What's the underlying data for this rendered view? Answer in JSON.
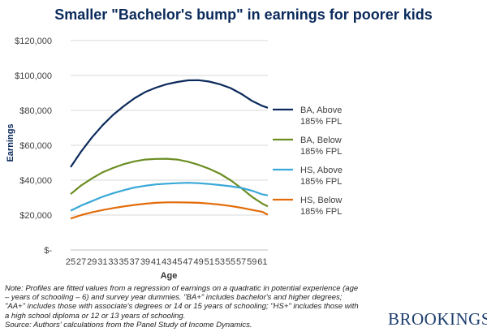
{
  "title": "Smaller \"Bachelor's bump\" in earnings for poorer kids",
  "chart_data": {
    "type": "line",
    "xlabel": "Age",
    "ylabel": "Earnings",
    "xlim": [
      25,
      62
    ],
    "ylim": [
      0,
      120000
    ],
    "x_ticks": [
      25,
      27,
      29,
      31,
      33,
      35,
      37,
      39,
      41,
      43,
      45,
      47,
      49,
      51,
      53,
      55,
      57,
      59,
      61
    ],
    "y_ticks": [
      {
        "value": 0,
        "label": "$-"
      },
      {
        "value": 20000,
        "label": "$20,000"
      },
      {
        "value": 40000,
        "label": "$40,000"
      },
      {
        "value": 60000,
        "label": "$60,000"
      },
      {
        "value": 80000,
        "label": "$80,000"
      },
      {
        "value": 100000,
        "label": "$100,000"
      },
      {
        "value": 120000,
        "label": "$120,000"
      }
    ],
    "grid": true,
    "legend_position": "right",
    "x": [
      25,
      27,
      29,
      31,
      33,
      35,
      37,
      39,
      41,
      43,
      45,
      47,
      49,
      51,
      53,
      55,
      57,
      59,
      61,
      62
    ],
    "series": [
      {
        "name": "BA, Above 185% FPL",
        "color": "#0b2a5b",
        "values": [
          47500,
          56500,
          64500,
          71500,
          77500,
          82500,
          87000,
          90500,
          93000,
          95000,
          96300,
          97200,
          97300,
          96500,
          95000,
          92800,
          89500,
          85500,
          82500,
          81500
        ]
      },
      {
        "name": "BA, Below 185% FPL",
        "color": "#6b8e23",
        "values": [
          32000,
          37000,
          41000,
          44500,
          47000,
          49200,
          50800,
          51800,
          52200,
          52300,
          51800,
          50600,
          48800,
          46500,
          43700,
          40000,
          35500,
          30500,
          26500,
          25000
        ]
      },
      {
        "name": "HS, Above 185% FPL",
        "color": "#3aa8d8",
        "values": [
          22500,
          25500,
          28000,
          30500,
          32500,
          34300,
          35800,
          36800,
          37600,
          38000,
          38300,
          38500,
          38300,
          37800,
          37200,
          36500,
          35600,
          34000,
          31800,
          31300
        ]
      },
      {
        "name": "HS, Below 185% FPL",
        "color": "#e36c0a",
        "values": [
          18000,
          20000,
          21600,
          22900,
          24000,
          25000,
          25800,
          26500,
          27000,
          27300,
          27300,
          27200,
          27000,
          26600,
          26000,
          25200,
          24200,
          23000,
          21800,
          20200
        ]
      }
    ]
  },
  "legend": [
    {
      "line1": "BA, Above",
      "line2": "185% FPL"
    },
    {
      "line1": "BA, Below",
      "line2": "185% FPL"
    },
    {
      "line1": "HS, Above",
      "line2": "185% FPL"
    },
    {
      "line1": "HS, Below",
      "line2": "185% FPL"
    }
  ],
  "note_lines": [
    "Note: Profiles are fitted values from a regression of earnings on a quadratic in potential experience (age",
    "– years of schooling – 6) and survey year dummies. \"BA+\" includes bachelor's and higher degrees;",
    "\"AA+\" includes those with associate's degrees or 14 or 15 years of schooling; \"HS+\" includes those with",
    "a high school diploma or 12 or 13 years of schooling.",
    "Source: Authors' calculations from the Panel Study of Income Dynamics."
  ],
  "brand": "BROOKINGS"
}
